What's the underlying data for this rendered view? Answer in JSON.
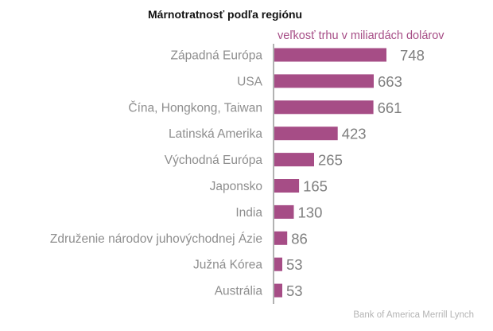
{
  "chart_data": {
    "type": "bar",
    "orientation": "horizontal",
    "title": "Márnotratnosť podľa regiónu",
    "subtitle": "veľkosť trhu v miliardách dolárov",
    "categories": [
      "Západná Európa",
      "USA",
      "Čína, Hongkong, Taiwan",
      "Latinská Amerika",
      "Východná Európa",
      "Japonsko",
      "India",
      "Združenie národov juhovýchodnej Ázie",
      "Južná Kórea",
      "Austrália"
    ],
    "values": [
      748,
      663,
      661,
      423,
      265,
      165,
      130,
      86,
      53,
      53
    ],
    "xlim": [
      0,
      748
    ],
    "grid": false,
    "legend": "none",
    "source": "Bank of America Merrill Lynch",
    "colors": {
      "bar": "#a64d86",
      "axis": "#666666",
      "category_text": "#8e8e8e",
      "value_text": "#7f7f7f",
      "subtitle_text": "#a64d86",
      "source_text": "#b4b4b4"
    }
  }
}
